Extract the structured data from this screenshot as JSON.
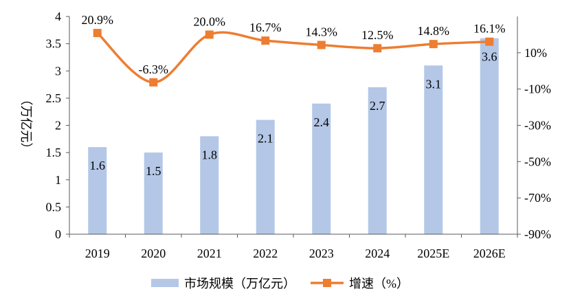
{
  "chart_data": {
    "type": "bar",
    "categories": [
      "2019",
      "2020",
      "2021",
      "2022",
      "2023",
      "2024",
      "2025E",
      "2026E"
    ],
    "series": [
      {
        "name": "市场规模（万亿元）",
        "type": "bar",
        "axis": "left",
        "values": [
          1.6,
          1.5,
          1.8,
          2.1,
          2.4,
          2.7,
          3.1,
          3.6
        ],
        "color": "#b4c7e7"
      },
      {
        "name": "增速（%）",
        "type": "line",
        "axis": "right",
        "values": [
          20.9,
          -6.3,
          20.0,
          16.7,
          14.3,
          12.5,
          14.8,
          16.1
        ],
        "labels": [
          "20.9%",
          "-6.3%",
          "20.0%",
          "16.7%",
          "14.3%",
          "12.5%",
          "14.8%",
          "16.1%"
        ],
        "color": "#ed7d31"
      }
    ],
    "ylabel": "（万亿元）",
    "ylim": [
      0,
      4
    ],
    "yticks": [
      "0",
      "0.5",
      "1",
      "1.5",
      "2",
      "2.5",
      "3",
      "3.5",
      "4"
    ],
    "y2lim": [
      -90,
      30
    ],
    "y2ticks": [
      "-90%",
      "-70%",
      "-50%",
      "-30%",
      "-10%",
      "10%"
    ],
    "grid": false,
    "legend": "bottom"
  }
}
